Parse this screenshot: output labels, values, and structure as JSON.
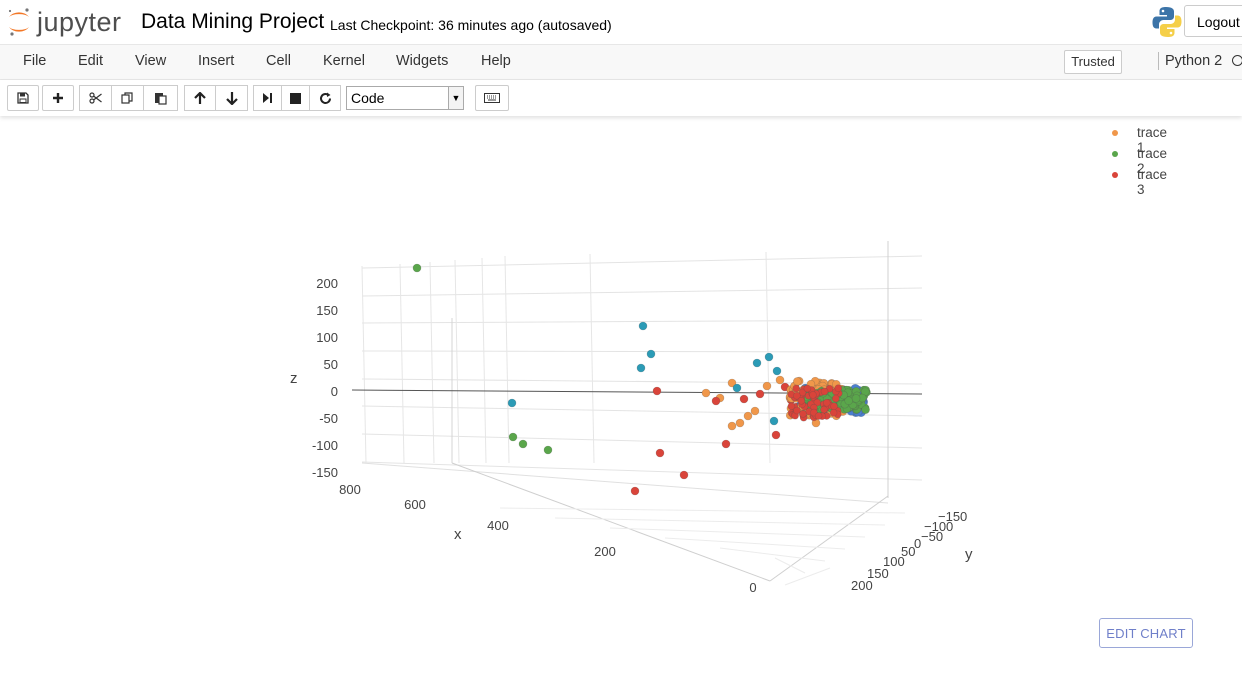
{
  "header": {
    "logo_text": "jupyter",
    "notebook_name": "Data Mining Project",
    "checkpoint": "Last Checkpoint: 36 minutes ago (autosaved)",
    "logout_label": "Logout"
  },
  "menubar": {
    "items": [
      "File",
      "Edit",
      "View",
      "Insert",
      "Cell",
      "Kernel",
      "Widgets",
      "Help"
    ],
    "trusted_label": "Trusted",
    "kernel_name": "Python 2"
  },
  "toolbar": {
    "buttons": [
      "save-icon",
      "plus-icon",
      "cut-icon",
      "copy-icon",
      "paste-icon",
      "arrow-up-icon",
      "arrow-down-icon",
      "run-icon",
      "stop-icon",
      "restart-icon"
    ],
    "cell_type": "Code",
    "keyboard_icon": "keyboard-icon"
  },
  "chart_data": {
    "type": "scatter",
    "title": "",
    "axes": {
      "x": {
        "label": "x",
        "ticks": [
          "800",
          "600",
          "400",
          "200",
          "0"
        ]
      },
      "y": {
        "label": "y",
        "ticks": [
          "-150",
          "-100",
          "-50",
          "0",
          "50",
          "100",
          "150",
          "200"
        ]
      },
      "z": {
        "label": "z",
        "ticks": [
          "200",
          "150",
          "100",
          "50",
          "0",
          "-50",
          "-100",
          "-150"
        ]
      }
    },
    "series": [
      {
        "name": "trace 1",
        "color": "#f0974a"
      },
      {
        "name": "trace 2",
        "color": "#5aa64b"
      },
      {
        "name": "trace 3",
        "color": "#d9443a"
      }
    ],
    "extra_colors": {
      "teal": "#2b9bb6",
      "blue": "#4a7fd0"
    },
    "legend_position": "top-right",
    "grid": true
  },
  "edit_chart_label": "EDIT CHART"
}
